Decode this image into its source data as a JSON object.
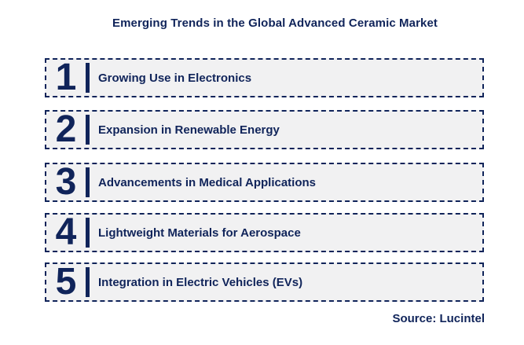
{
  "title": "Emerging Trends in the Global Advanced Ceramic Market",
  "trends": [
    {
      "number": "1",
      "label": "Growing Use in Electronics"
    },
    {
      "number": "2",
      "label": "Expansion in Renewable Energy"
    },
    {
      "number": "3",
      "label": "Advancements in Medical Applications"
    },
    {
      "number": "4",
      "label": "Lightweight Materials for Aerospace"
    },
    {
      "number": "5",
      "label": "Integration in Electric Vehicles (EVs)"
    }
  ],
  "source": "Source: Lucintel",
  "colors": {
    "navy": "#10245a",
    "card_background": "#f1f1f2",
    "page_background": "#ffffff"
  }
}
